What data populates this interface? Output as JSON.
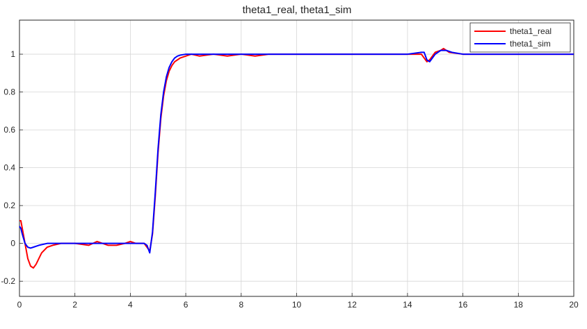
{
  "chart_data": {
    "type": "line",
    "title": "theta1_real, theta1_sim",
    "xlabel": "",
    "ylabel": "",
    "xlim": [
      0,
      20
    ],
    "ylim": [
      -0.28,
      1.18
    ],
    "xticks": [
      0,
      2,
      4,
      6,
      8,
      10,
      12,
      14,
      16,
      18,
      20
    ],
    "yticks": [
      -0.2,
      0,
      0.2,
      0.4,
      0.6,
      0.8,
      1
    ],
    "ytick_labels": [
      "-0.2",
      "0",
      "0.2",
      "0.4",
      "0.6",
      "0.8",
      "1"
    ],
    "grid": true,
    "legend_position": "top-right",
    "series": [
      {
        "name": "theta1_real",
        "color": "#ff0000",
        "x": [
          0,
          0.05,
          0.1,
          0.2,
          0.3,
          0.4,
          0.5,
          0.6,
          0.7,
          0.8,
          1.0,
          1.2,
          1.5,
          2.0,
          2.5,
          2.8,
          3.0,
          3.2,
          3.5,
          3.8,
          4.0,
          4.2,
          4.5,
          4.6,
          4.7,
          4.8,
          4.9,
          5.0,
          5.1,
          5.2,
          5.3,
          5.4,
          5.5,
          5.6,
          5.7,
          5.8,
          6.0,
          6.2,
          6.5,
          7.0,
          7.5,
          8.0,
          8.5,
          9.0,
          10.0,
          11.0,
          12.0,
          13.0,
          14.0,
          14.5,
          14.6,
          14.7,
          14.8,
          15.0,
          15.2,
          15.3,
          15.5,
          16.0,
          16.5,
          17.0,
          18.0,
          19.0,
          20.0
        ],
        "y": [
          0.12,
          0.12,
          0.08,
          0.0,
          -0.08,
          -0.12,
          -0.13,
          -0.11,
          -0.08,
          -0.05,
          -0.02,
          -0.01,
          0.0,
          0.0,
          -0.01,
          0.01,
          0.0,
          -0.01,
          -0.01,
          0.0,
          0.01,
          0.0,
          0.0,
          -0.02,
          -0.04,
          0.05,
          0.25,
          0.48,
          0.66,
          0.78,
          0.86,
          0.91,
          0.94,
          0.96,
          0.97,
          0.98,
          0.99,
          1.0,
          0.99,
          1.0,
          0.99,
          1.0,
          0.99,
          1.0,
          1.0,
          1.0,
          1.0,
          1.0,
          1.0,
          1.0,
          0.98,
          0.96,
          0.97,
          1.01,
          1.02,
          1.03,
          1.01,
          1.0,
          1.0,
          1.0,
          1.0,
          1.0,
          1.0
        ]
      },
      {
        "name": "theta1_sim",
        "color": "#0000ff",
        "x": [
          0,
          0.05,
          0.1,
          0.2,
          0.3,
          0.4,
          0.5,
          0.7,
          1.0,
          1.5,
          2.0,
          3.0,
          4.0,
          4.5,
          4.6,
          4.7,
          4.8,
          4.9,
          5.0,
          5.1,
          5.2,
          5.3,
          5.4,
          5.5,
          5.6,
          5.7,
          5.8,
          6.0,
          6.5,
          7.0,
          8.0,
          9.0,
          10.0,
          12.0,
          14.0,
          14.5,
          14.6,
          14.7,
          14.8,
          14.9,
          15.0,
          15.2,
          15.4,
          15.6,
          16.0,
          17.0,
          18.0,
          20.0
        ],
        "y": [
          0.09,
          0.08,
          0.05,
          0.0,
          -0.02,
          -0.025,
          -0.02,
          -0.01,
          0.0,
          0.0,
          0.0,
          0.0,
          0.0,
          0.0,
          -0.01,
          -0.05,
          0.06,
          0.27,
          0.5,
          0.68,
          0.8,
          0.88,
          0.93,
          0.96,
          0.98,
          0.99,
          0.995,
          1.0,
          1.0,
          1.0,
          1.0,
          1.0,
          1.0,
          1.0,
          1.0,
          1.01,
          1.01,
          0.97,
          0.96,
          0.98,
          1.0,
          1.02,
          1.02,
          1.01,
          1.0,
          1.0,
          1.0,
          1.0
        ]
      }
    ]
  }
}
